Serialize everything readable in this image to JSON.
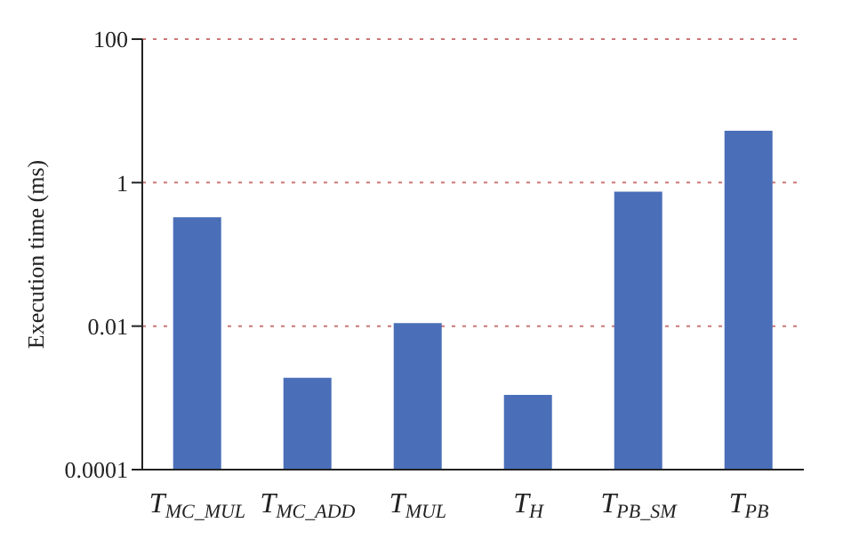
{
  "chart_data": {
    "type": "bar",
    "ylabel": "Execution time (ms)",
    "categories": [
      "T$_{MC_MUL}$",
      "T$_{MC_ADD}$",
      "T$_{MUL}$",
      "T$_{H}$",
      "T$_{PB_SM}$",
      "T$_{PB}$"
    ],
    "values": [
      0.33,
      0.0019,
      0.011,
      0.0011,
      0.75,
      5.3
    ],
    "color": "#4a6fb8",
    "log": "y",
    "ylim": [
      0.0001,
      100
    ],
    "yticks": [
      0.0001,
      0.01,
      1,
      100
    ],
    "grid": "y"
  }
}
